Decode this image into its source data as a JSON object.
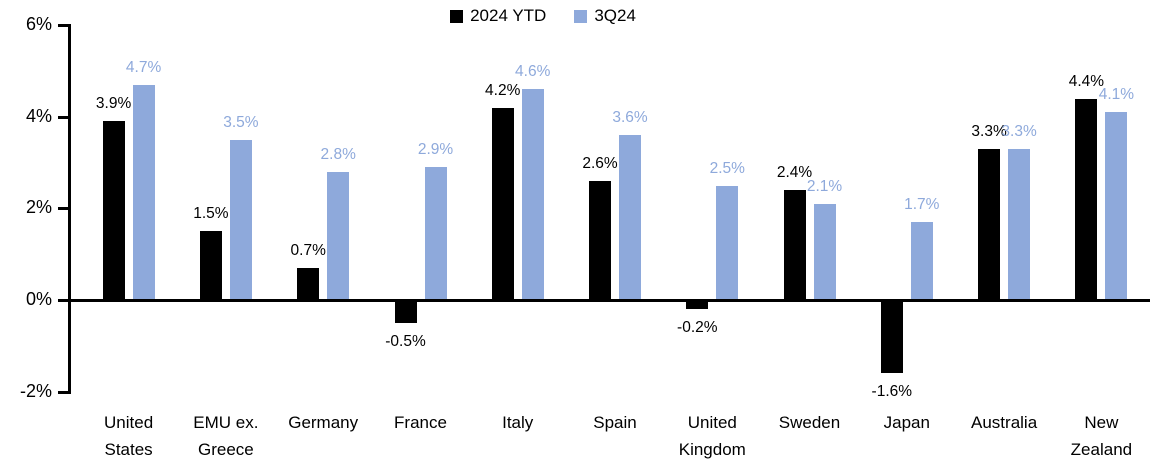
{
  "chart_data": {
    "type": "bar",
    "title": "",
    "categories": [
      "United States",
      "EMU ex. Greece",
      "Germany",
      "France",
      "Italy",
      "Spain",
      "United Kingdom",
      "Sweden",
      "Japan",
      "Australia",
      "New Zealand"
    ],
    "categories_wrapped": [
      [
        "United",
        "States"
      ],
      [
        "EMU ex.",
        "Greece"
      ],
      [
        "Germany"
      ],
      [
        "France"
      ],
      [
        "Italy"
      ],
      [
        "Spain"
      ],
      [
        "United",
        "Kingdom"
      ],
      [
        "Sweden"
      ],
      [
        "Japan"
      ],
      [
        "Australia"
      ],
      [
        "New",
        "Zealand"
      ]
    ],
    "series": [
      {
        "name": "2024 YTD",
        "color": "#000000",
        "values": [
          3.9,
          1.5,
          0.7,
          -0.5,
          4.2,
          2.6,
          -0.2,
          2.4,
          -1.6,
          3.3,
          4.4
        ],
        "labels": [
          "3.9%",
          "1.5%",
          "0.7%",
          "-0.5%",
          "4.2%",
          "2.6%",
          "-0.2%",
          "2.4%",
          "-1.6%",
          "3.3%",
          "4.4%"
        ]
      },
      {
        "name": "3Q24",
        "color": "#8EA9DB",
        "values": [
          4.7,
          3.5,
          2.8,
          2.9,
          4.6,
          3.6,
          2.5,
          2.1,
          1.7,
          3.3,
          4.1
        ],
        "labels": [
          "4.7%",
          "3.5%",
          "2.8%",
          "2.9%",
          "4.6%",
          "3.6%",
          "2.5%",
          "2.1%",
          "1.7%",
          "3.3%",
          "4.1%"
        ]
      }
    ],
    "y_axis": {
      "min": -2,
      "max": 6,
      "tick_step": 2,
      "tick_values": [
        6,
        4,
        2,
        0,
        -2
      ],
      "tick_labels": [
        "6%",
        "4%",
        "2%",
        "0%",
        "-2%"
      ]
    },
    "legend_position": "top-center",
    "grid": false,
    "axis_color": "#000000",
    "background_color": "#FFFFFF"
  }
}
